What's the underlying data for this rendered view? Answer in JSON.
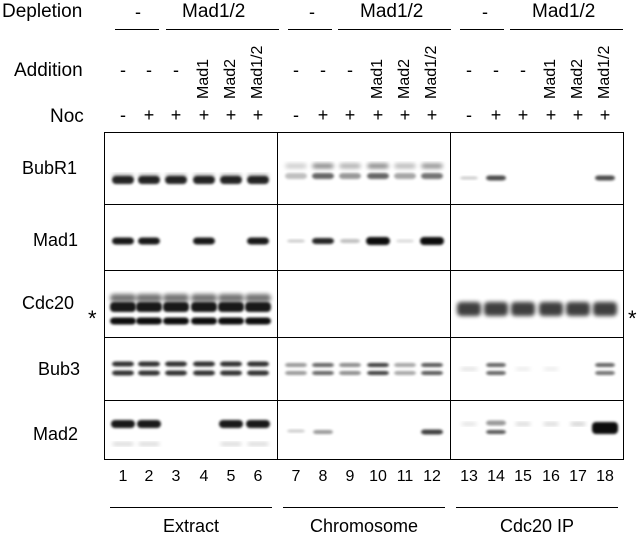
{
  "labels": {
    "depletion": "Depletion",
    "addition": "Addition",
    "noc": "Noc"
  },
  "depletion_groups": [
    {
      "text": "-"
    },
    {
      "text": "Mad1/2"
    },
    {
      "text": "-"
    },
    {
      "text": "Mad1/2"
    },
    {
      "text": "-"
    },
    {
      "text": "Mad1/2"
    }
  ],
  "addition": [
    "-",
    "-",
    "-",
    "Mad1",
    "Mad2",
    "Mad1/2",
    "-",
    "-",
    "-",
    "Mad1",
    "Mad2",
    "Mad1/2",
    "-",
    "-",
    "-",
    "Mad1",
    "Mad2",
    "Mad1/2"
  ],
  "noc": [
    "-",
    "+",
    "+",
    "+",
    "+",
    "+",
    "-",
    "+",
    "+",
    "+",
    "+",
    "+",
    "-",
    "+",
    "+",
    "+",
    "+",
    "+"
  ],
  "rows": [
    "BubR1",
    "Mad1",
    "Cdc20",
    "Bub3",
    "Mad2"
  ],
  "asterisk": "*",
  "lanes": [
    "1",
    "2",
    "3",
    "4",
    "5",
    "6",
    "7",
    "8",
    "9",
    "10",
    "11",
    "12",
    "13",
    "14",
    "15",
    "16",
    "17",
    "18"
  ],
  "sections": [
    "Extract",
    "Chromosome",
    "Cdc20 IP"
  ]
}
